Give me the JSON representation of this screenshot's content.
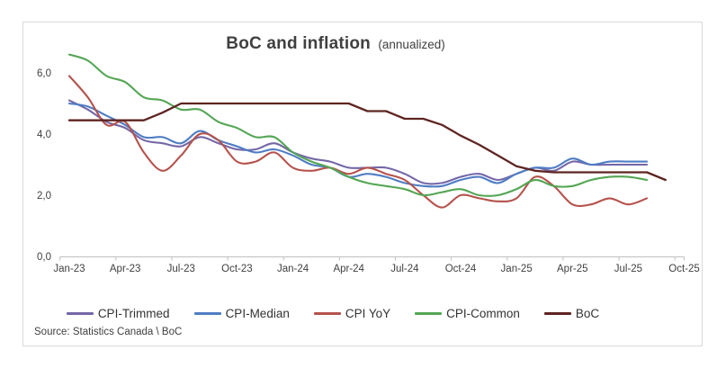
{
  "title": {
    "main": "BoC and inflation",
    "sub": "(annualized)"
  },
  "source_note": "Source: Statistics Canada \\ BoC",
  "colors": {
    "frame_border": "#d9d9d9",
    "axis_line": "#bfbfbf",
    "title_text": "#404040",
    "label_text": "#3f3f3f",
    "cpi_trimmed": "#7467A7",
    "cpi_median": "#4F7DC4",
    "cpi_yoy": "#B5524C",
    "cpi_common": "#54A654",
    "boc": "#5E2521"
  },
  "chart_data": {
    "type": "line",
    "title": "BoC and inflation (annualized)",
    "xlabel": "",
    "ylabel": "",
    "ylim": [
      0,
      7
    ],
    "grid": false,
    "legend_position": "bottom",
    "decimal_style": "comma",
    "x": [
      "Jan-23",
      "Feb-23",
      "Mar-23",
      "Apr-23",
      "May-23",
      "Jun-23",
      "Jul-23",
      "Aug-23",
      "Sep-23",
      "Oct-23",
      "Nov-23",
      "Dec-23",
      "Jan-24",
      "Feb-24",
      "Mar-24",
      "Apr-24",
      "May-24",
      "Jun-24",
      "Jul-24",
      "Aug-24",
      "Sep-24",
      "Oct-24",
      "Nov-24",
      "Dec-24",
      "Jan-25",
      "Feb-25",
      "Mar-25",
      "Apr-25",
      "May-25",
      "Jun-25",
      "Jul-25",
      "Aug-25",
      "Sep-25"
    ],
    "x_axis_tick_labels": [
      "Jan-23",
      "Apr-23",
      "Jul-23",
      "Oct-23",
      "Jan-24",
      "Apr-24",
      "Jul-24",
      "Oct-24",
      "Jan-25",
      "Apr-25",
      "Jul-25",
      "Oct-25"
    ],
    "y_axis_tick_labels": [
      "0,0",
      "2,0",
      "4,0",
      "6,0"
    ],
    "y_axis_tick_values": [
      0,
      2,
      4,
      6
    ],
    "series": [
      {
        "name": "CPI-Trimmed",
        "color": "#7467A7",
        "smooth": true,
        "values": [
          5.1,
          4.8,
          4.4,
          4.2,
          3.8,
          3.7,
          3.6,
          3.9,
          3.7,
          3.5,
          3.5,
          3.7,
          3.4,
          3.2,
          3.1,
          2.9,
          2.9,
          2.9,
          2.7,
          2.4,
          2.4,
          2.6,
          2.7,
          2.5,
          2.7,
          2.9,
          2.8,
          3.1,
          3.0,
          3.0,
          3.0,
          3.0
        ]
      },
      {
        "name": "CPI-Median",
        "color": "#4F7DC4",
        "smooth": true,
        "values": [
          5.0,
          4.9,
          4.6,
          4.3,
          3.9,
          3.9,
          3.7,
          4.1,
          3.8,
          3.6,
          3.4,
          3.5,
          3.3,
          3.0,
          2.9,
          2.6,
          2.7,
          2.6,
          2.4,
          2.3,
          2.3,
          2.5,
          2.6,
          2.4,
          2.7,
          2.9,
          2.9,
          3.2,
          3.0,
          3.1,
          3.1,
          3.1
        ]
      },
      {
        "name": "CPI YoY",
        "color": "#B5524C",
        "smooth": true,
        "values": [
          5.9,
          5.2,
          4.3,
          4.4,
          3.4,
          2.8,
          3.3,
          4.0,
          3.8,
          3.1,
          3.1,
          3.4,
          2.9,
          2.8,
          2.9,
          2.7,
          2.9,
          2.7,
          2.5,
          2.0,
          1.6,
          2.0,
          1.9,
          1.8,
          1.9,
          2.6,
          2.3,
          1.7,
          1.7,
          1.9,
          1.7,
          1.9
        ]
      },
      {
        "name": "CPI-Common",
        "color": "#54A654",
        "smooth": true,
        "values": [
          6.6,
          6.4,
          5.9,
          5.7,
          5.2,
          5.1,
          4.8,
          4.8,
          4.4,
          4.2,
          3.9,
          3.9,
          3.4,
          3.1,
          2.9,
          2.6,
          2.4,
          2.3,
          2.2,
          2.0,
          2.1,
          2.2,
          2.0,
          2.0,
          2.2,
          2.5,
          2.3,
          2.3,
          2.5,
          2.6,
          2.6,
          2.5
        ]
      },
      {
        "name": "BoC",
        "color": "#5E2521",
        "smooth": false,
        "values": [
          4.45,
          4.45,
          4.45,
          4.45,
          4.45,
          4.7,
          5.0,
          5.0,
          5.0,
          5.0,
          5.0,
          5.0,
          5.0,
          5.0,
          5.0,
          5.0,
          4.75,
          4.75,
          4.5,
          4.5,
          4.3,
          3.95,
          3.65,
          3.3,
          2.95,
          2.8,
          2.75,
          2.75,
          2.75,
          2.75,
          2.75,
          2.75,
          2.5
        ]
      }
    ]
  }
}
